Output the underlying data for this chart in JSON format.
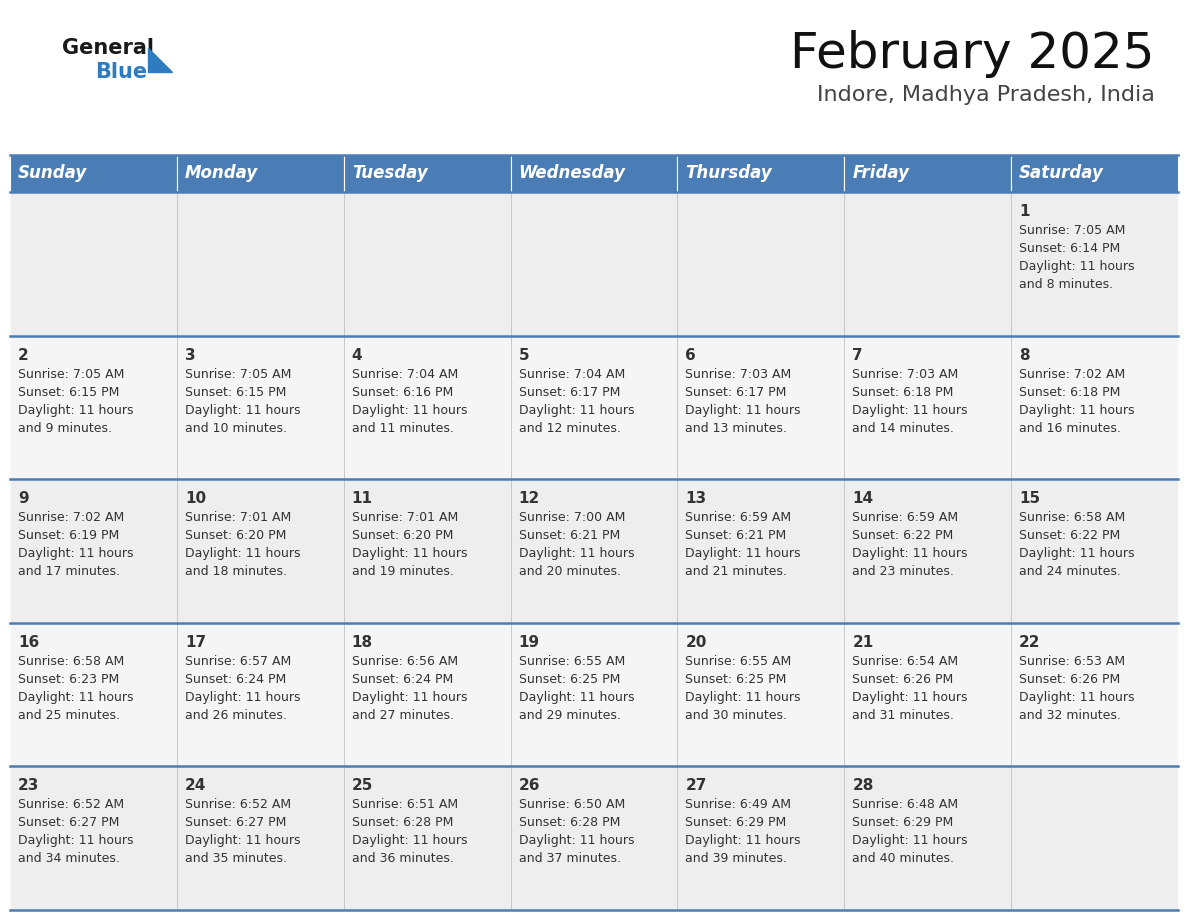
{
  "title": "February 2025",
  "subtitle": "Indore, Madhya Pradesh, India",
  "header_color": "#4a7db5",
  "header_text_color": "#ffffff",
  "day_names": [
    "Sunday",
    "Monday",
    "Tuesday",
    "Wednesday",
    "Thursday",
    "Friday",
    "Saturday"
  ],
  "bg_color": "#ffffff",
  "cell_bg_row0": "#eeeeee",
  "cell_bg_row1": "#f5f5f5",
  "cell_bg_row2": "#eeeeee",
  "cell_bg_row3": "#f5f5f5",
  "cell_bg_row4": "#eeeeee",
  "divider_color": "#4a7db5",
  "text_color": "#333333",
  "logo_general_color": "#1a1a1a",
  "logo_blue_color": "#2e7bbf",
  "calendar_data": [
    [
      null,
      null,
      null,
      null,
      null,
      null,
      {
        "day": "1",
        "sunrise": "7:05 AM",
        "sunset": "6:14 PM",
        "daylight_h": "11 hours",
        "daylight_m": "and 8 minutes."
      }
    ],
    [
      {
        "day": "2",
        "sunrise": "7:05 AM",
        "sunset": "6:15 PM",
        "daylight_h": "11 hours",
        "daylight_m": "and 9 minutes."
      },
      {
        "day": "3",
        "sunrise": "7:05 AM",
        "sunset": "6:15 PM",
        "daylight_h": "11 hours",
        "daylight_m": "and 10 minutes."
      },
      {
        "day": "4",
        "sunrise": "7:04 AM",
        "sunset": "6:16 PM",
        "daylight_h": "11 hours",
        "daylight_m": "and 11 minutes."
      },
      {
        "day": "5",
        "sunrise": "7:04 AM",
        "sunset": "6:17 PM",
        "daylight_h": "11 hours",
        "daylight_m": "and 12 minutes."
      },
      {
        "day": "6",
        "sunrise": "7:03 AM",
        "sunset": "6:17 PM",
        "daylight_h": "11 hours",
        "daylight_m": "and 13 minutes."
      },
      {
        "day": "7",
        "sunrise": "7:03 AM",
        "sunset": "6:18 PM",
        "daylight_h": "11 hours",
        "daylight_m": "and 14 minutes."
      },
      {
        "day": "8",
        "sunrise": "7:02 AM",
        "sunset": "6:18 PM",
        "daylight_h": "11 hours",
        "daylight_m": "and 16 minutes."
      }
    ],
    [
      {
        "day": "9",
        "sunrise": "7:02 AM",
        "sunset": "6:19 PM",
        "daylight_h": "11 hours",
        "daylight_m": "and 17 minutes."
      },
      {
        "day": "10",
        "sunrise": "7:01 AM",
        "sunset": "6:20 PM",
        "daylight_h": "11 hours",
        "daylight_m": "and 18 minutes."
      },
      {
        "day": "11",
        "sunrise": "7:01 AM",
        "sunset": "6:20 PM",
        "daylight_h": "11 hours",
        "daylight_m": "and 19 minutes."
      },
      {
        "day": "12",
        "sunrise": "7:00 AM",
        "sunset": "6:21 PM",
        "daylight_h": "11 hours",
        "daylight_m": "and 20 minutes."
      },
      {
        "day": "13",
        "sunrise": "6:59 AM",
        "sunset": "6:21 PM",
        "daylight_h": "11 hours",
        "daylight_m": "and 21 minutes."
      },
      {
        "day": "14",
        "sunrise": "6:59 AM",
        "sunset": "6:22 PM",
        "daylight_h": "11 hours",
        "daylight_m": "and 23 minutes."
      },
      {
        "day": "15",
        "sunrise": "6:58 AM",
        "sunset": "6:22 PM",
        "daylight_h": "11 hours",
        "daylight_m": "and 24 minutes."
      }
    ],
    [
      {
        "day": "16",
        "sunrise": "6:58 AM",
        "sunset": "6:23 PM",
        "daylight_h": "11 hours",
        "daylight_m": "and 25 minutes."
      },
      {
        "day": "17",
        "sunrise": "6:57 AM",
        "sunset": "6:24 PM",
        "daylight_h": "11 hours",
        "daylight_m": "and 26 minutes."
      },
      {
        "day": "18",
        "sunrise": "6:56 AM",
        "sunset": "6:24 PM",
        "daylight_h": "11 hours",
        "daylight_m": "and 27 minutes."
      },
      {
        "day": "19",
        "sunrise": "6:55 AM",
        "sunset": "6:25 PM",
        "daylight_h": "11 hours",
        "daylight_m": "and 29 minutes."
      },
      {
        "day": "20",
        "sunrise": "6:55 AM",
        "sunset": "6:25 PM",
        "daylight_h": "11 hours",
        "daylight_m": "and 30 minutes."
      },
      {
        "day": "21",
        "sunrise": "6:54 AM",
        "sunset": "6:26 PM",
        "daylight_h": "11 hours",
        "daylight_m": "and 31 minutes."
      },
      {
        "day": "22",
        "sunrise": "6:53 AM",
        "sunset": "6:26 PM",
        "daylight_h": "11 hours",
        "daylight_m": "and 32 minutes."
      }
    ],
    [
      {
        "day": "23",
        "sunrise": "6:52 AM",
        "sunset": "6:27 PM",
        "daylight_h": "11 hours",
        "daylight_m": "and 34 minutes."
      },
      {
        "day": "24",
        "sunrise": "6:52 AM",
        "sunset": "6:27 PM",
        "daylight_h": "11 hours",
        "daylight_m": "and 35 minutes."
      },
      {
        "day": "25",
        "sunrise": "6:51 AM",
        "sunset": "6:28 PM",
        "daylight_h": "11 hours",
        "daylight_m": "and 36 minutes."
      },
      {
        "day": "26",
        "sunrise": "6:50 AM",
        "sunset": "6:28 PM",
        "daylight_h": "11 hours",
        "daylight_m": "and 37 minutes."
      },
      {
        "day": "27",
        "sunrise": "6:49 AM",
        "sunset": "6:29 PM",
        "daylight_h": "11 hours",
        "daylight_m": "and 39 minutes."
      },
      {
        "day": "28",
        "sunrise": "6:48 AM",
        "sunset": "6:29 PM",
        "daylight_h": "11 hours",
        "daylight_m": "and 40 minutes."
      },
      null
    ]
  ]
}
